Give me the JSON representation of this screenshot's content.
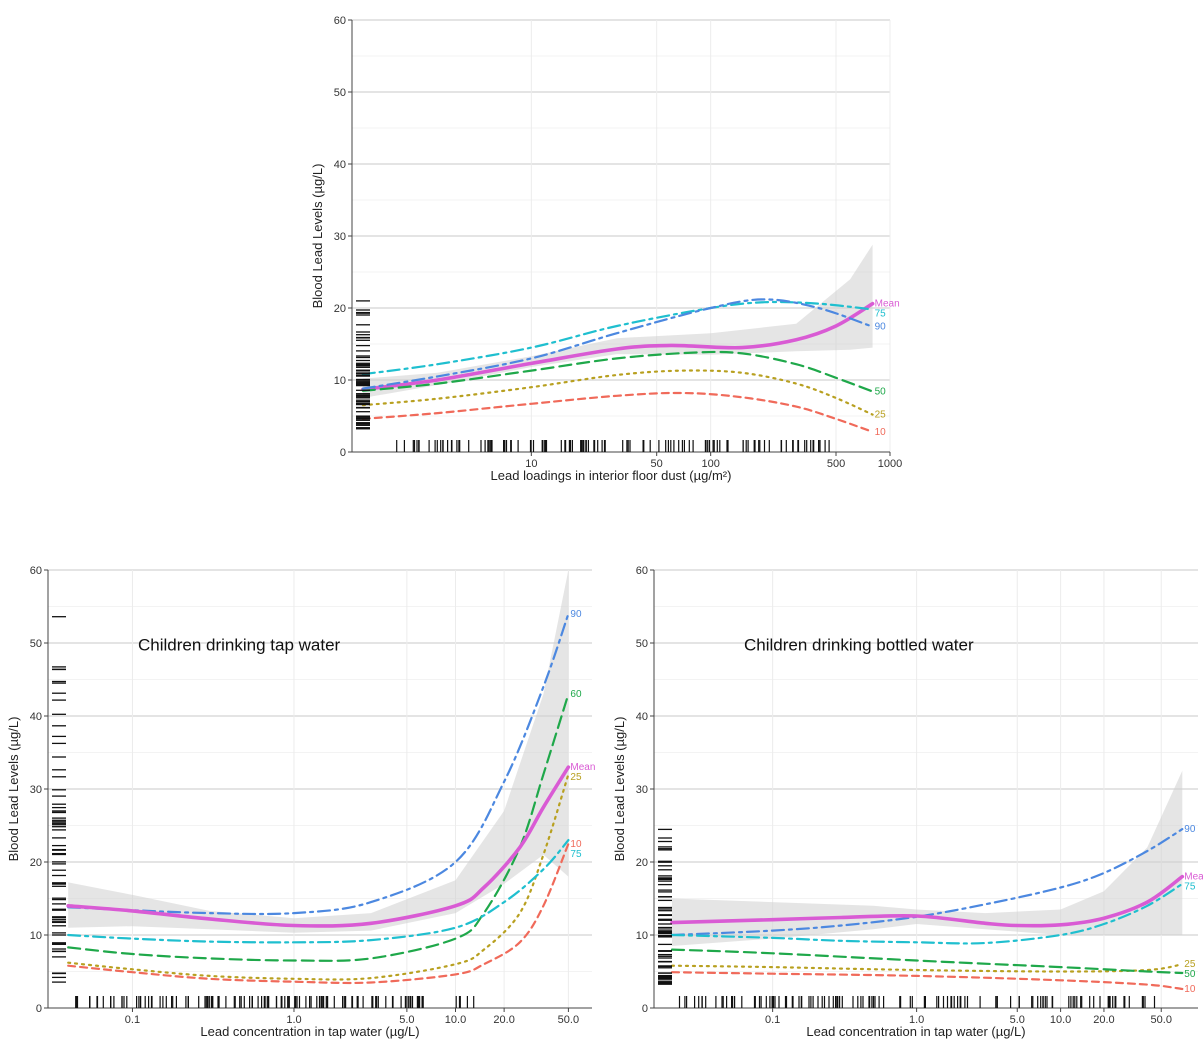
{
  "chart_data": [
    {
      "type": "line",
      "title": "",
      "annotation": "",
      "xlabel": "Lead loadings in interior floor dust (µg/m²)",
      "ylabel": "Blood Lead Levels (µg/L)",
      "x_scale": "log",
      "xlim": [
        1,
        1000
      ],
      "ylim": [
        0,
        60
      ],
      "x_ticks": [
        10,
        50,
        100,
        500,
        1000
      ],
      "x_tick_labels": [
        "10",
        "50",
        "100",
        "500",
        "1000"
      ],
      "y_ticks": [
        0,
        10,
        20,
        30,
        40,
        50,
        60
      ],
      "y_tick_labels": [
        "0",
        "10",
        "20",
        "30",
        "40",
        "50",
        "60"
      ],
      "grid": true,
      "legend": "inline-right",
      "ci_band": {
        "x": [
          1.15,
          3,
          10,
          30,
          100,
          300,
          600,
          800
        ],
        "lower": [
          7.5,
          9.3,
          11.8,
          13.6,
          13.5,
          14.0,
          14.2,
          14.5
        ],
        "upper": [
          10.2,
          11.0,
          13.3,
          15.8,
          16.5,
          17.8,
          24.0,
          28.8
        ]
      },
      "series": [
        {
          "name": "Mean",
          "style": "solid",
          "color": "#d95bd4",
          "x": [
            1.15,
            3,
            10,
            30,
            60,
            150,
            300,
            500,
            800
          ],
          "y": [
            8.7,
            10.0,
            12.3,
            14.3,
            14.8,
            14.5,
            15.6,
            17.5,
            20.6
          ]
        },
        {
          "name": "75",
          "style": "dashdot",
          "color": "#1fbfcf",
          "x": [
            1.15,
            3,
            10,
            30,
            100,
            200,
            400,
            800
          ],
          "y": [
            10.8,
            12.2,
            14.5,
            17.5,
            20.0,
            20.8,
            20.6,
            19.8
          ]
        },
        {
          "name": "90",
          "style": "dashdot",
          "color": "#4c88e0",
          "x": [
            1.15,
            3,
            10,
            30,
            100,
            200,
            400,
            800
          ],
          "y": [
            8.8,
            10.5,
            13.0,
            16.5,
            20.0,
            21.2,
            20.0,
            17.4
          ]
        },
        {
          "name": "50",
          "style": "dashed",
          "color": "#1fa84a",
          "x": [
            1.15,
            3,
            10,
            30,
            80,
            150,
            300,
            500,
            800
          ],
          "y": [
            8.5,
            9.5,
            11.3,
            13.0,
            13.8,
            13.7,
            12.2,
            10.3,
            8.4
          ]
        },
        {
          "name": "25",
          "style": "dotted",
          "color": "#b8a020",
          "x": [
            1.15,
            3,
            10,
            30,
            70,
            150,
            300,
            500,
            800
          ],
          "y": [
            6.5,
            7.4,
            9.0,
            10.7,
            11.3,
            11.0,
            9.5,
            7.5,
            5.2
          ]
        },
        {
          "name": "10",
          "style": "dashed-short",
          "color": "#f06a5a",
          "x": [
            1.15,
            3,
            10,
            30,
            70,
            150,
            300,
            500,
            800
          ],
          "y": [
            4.6,
            5.4,
            6.7,
            7.8,
            8.2,
            7.6,
            6.3,
            4.6,
            2.8
          ]
        }
      ]
    },
    {
      "type": "line",
      "title": "",
      "annotation": "Children drinking tap water",
      "xlabel": "Lead concentration in tap water (µg/L)",
      "ylabel": "Blood Lead Levels (µg/L)",
      "x_scale": "log",
      "xlim": [
        0.03,
        70
      ],
      "ylim": [
        0,
        60
      ],
      "x_ticks": [
        0.1,
        1,
        5,
        10,
        20,
        50
      ],
      "x_tick_labels": [
        "0.1",
        "1.0",
        "5.0",
        "10.0",
        "20.0",
        "50.0"
      ],
      "y_ticks": [
        0,
        10,
        20,
        30,
        40,
        50,
        60
      ],
      "y_tick_labels": [
        "0",
        "10",
        "20",
        "30",
        "40",
        "50",
        "60"
      ],
      "grid": true,
      "legend": "inline-right",
      "ci_band": {
        "x": [
          0.04,
          0.1,
          0.3,
          1,
          3,
          10,
          20,
          35,
          50
        ],
        "lower": [
          11.0,
          11.2,
          10.8,
          10.3,
          10.6,
          13.0,
          17.0,
          21.0,
          18.0
        ],
        "upper": [
          17.2,
          15.5,
          13.3,
          12.3,
          13.0,
          17.5,
          27.0,
          43.0,
          60.0
        ]
      },
      "series": [
        {
          "name": "90",
          "style": "dashdot",
          "color": "#4c88e0",
          "x": [
            0.04,
            0.1,
            0.3,
            1,
            3,
            10,
            20,
            35,
            50
          ],
          "y": [
            13.8,
            13.4,
            13.0,
            13.0,
            14.5,
            20.0,
            31.0,
            44.0,
            54.0
          ]
        },
        {
          "name": "60",
          "style": "dashed",
          "color": "#1fa84a",
          "x": [
            0.04,
            0.1,
            0.3,
            1,
            3,
            10,
            15,
            25,
            35,
            50
          ],
          "y": [
            8.3,
            7.4,
            6.8,
            6.5,
            6.8,
            9.5,
            13.0,
            22.0,
            32.0,
            43.0
          ]
        },
        {
          "name": "Mean",
          "style": "solid",
          "color": "#d95bd4",
          "x": [
            0.04,
            0.1,
            0.3,
            1,
            3,
            10,
            15,
            25,
            35,
            50
          ],
          "y": [
            14.0,
            13.3,
            12.2,
            11.3,
            11.6,
            14.0,
            16.5,
            22.0,
            27.5,
            33.0
          ]
        },
        {
          "name": "25",
          "style": "dotted",
          "color": "#b8a020",
          "x": [
            0.04,
            0.1,
            0.3,
            1,
            3,
            10,
            15,
            25,
            35,
            50
          ],
          "y": [
            6.2,
            5.3,
            4.4,
            4.0,
            4.1,
            6.0,
            8.0,
            13.0,
            21.0,
            32.0
          ]
        },
        {
          "name": "10",
          "style": "dashed-short",
          "color": "#f06a5a",
          "x": [
            0.04,
            0.1,
            0.3,
            1,
            3,
            10,
            15,
            25,
            35,
            50
          ],
          "y": [
            5.8,
            4.9,
            4.0,
            3.6,
            3.5,
            4.6,
            6.0,
            9.0,
            14.0,
            22.5
          ]
        },
        {
          "name": "75",
          "style": "dashdot",
          "color": "#1fbfcf",
          "x": [
            0.04,
            0.1,
            0.3,
            1,
            3,
            10,
            20,
            35,
            50
          ],
          "y": [
            10.0,
            9.5,
            9.1,
            9.0,
            9.3,
            11.0,
            14.5,
            19.0,
            23.0
          ]
        }
      ]
    },
    {
      "type": "line",
      "title": "",
      "annotation": "Children drinking bottled water",
      "xlabel": "Lead concentration in tap water (µg/L)",
      "ylabel": "Blood Lead Levels (µg/L)",
      "x_scale": "log",
      "xlim": [
        0.015,
        90
      ],
      "ylim": [
        0,
        60
      ],
      "x_ticks": [
        0.1,
        1,
        5,
        10,
        20,
        50
      ],
      "x_tick_labels": [
        "0.1",
        "1.0",
        "5.0",
        "10.0",
        "20.0",
        "50.0"
      ],
      "y_ticks": [
        0,
        10,
        20,
        30,
        40,
        50,
        60
      ],
      "y_tick_labels": [
        "0",
        "10",
        "20",
        "30",
        "40",
        "50",
        "60"
      ],
      "grid": true,
      "legend": "inline-right",
      "ci_band": {
        "x": [
          0.02,
          0.1,
          0.5,
          1,
          3,
          10,
          20,
          40,
          70
        ],
        "lower": [
          8.5,
          9.5,
          10.8,
          11.5,
          10.8,
          10.0,
          10.0,
          10.0,
          10.0
        ],
        "upper": [
          15.0,
          14.5,
          14.0,
          13.5,
          13.0,
          13.5,
          16.0,
          22.0,
          32.5
        ]
      },
      "series": [
        {
          "name": "90",
          "style": "dashdot",
          "color": "#4c88e0",
          "x": [
            0.02,
            0.1,
            0.3,
            1,
            3,
            10,
            20,
            40,
            70
          ],
          "y": [
            10.0,
            10.6,
            11.3,
            12.5,
            14.2,
            16.5,
            18.5,
            21.5,
            24.5
          ]
        },
        {
          "name": "Mean",
          "style": "solid",
          "color": "#d95bd4",
          "x": [
            0.02,
            0.1,
            0.3,
            1,
            3,
            5,
            10,
            20,
            40,
            70
          ],
          "y": [
            11.7,
            12.1,
            12.4,
            12.6,
            11.6,
            11.3,
            11.4,
            12.3,
            14.5,
            18.0
          ]
        },
        {
          "name": "75",
          "style": "dashdot",
          "color": "#1fbfcf",
          "x": [
            0.02,
            0.1,
            0.3,
            1,
            3,
            10,
            20,
            40,
            70
          ],
          "y": [
            10.0,
            9.6,
            9.2,
            9.0,
            8.9,
            10.0,
            11.5,
            14.0,
            17.0
          ]
        },
        {
          "name": "25",
          "style": "dotted",
          "color": "#b8a020",
          "x": [
            0.02,
            0.1,
            1,
            10,
            40,
            70
          ],
          "y": [
            5.8,
            5.6,
            5.2,
            5.0,
            5.2,
            6.0
          ]
        },
        {
          "name": "50",
          "style": "dashed",
          "color": "#1fa84a",
          "x": [
            0.02,
            0.1,
            1,
            10,
            40,
            70
          ],
          "y": [
            8.0,
            7.5,
            6.5,
            5.6,
            5.0,
            4.8
          ]
        },
        {
          "name": "10",
          "style": "dashed-short",
          "color": "#f06a5a",
          "x": [
            0.02,
            0.1,
            1,
            10,
            40,
            70
          ],
          "y": [
            4.9,
            4.7,
            4.4,
            3.8,
            3.2,
            2.6
          ]
        }
      ]
    }
  ]
}
